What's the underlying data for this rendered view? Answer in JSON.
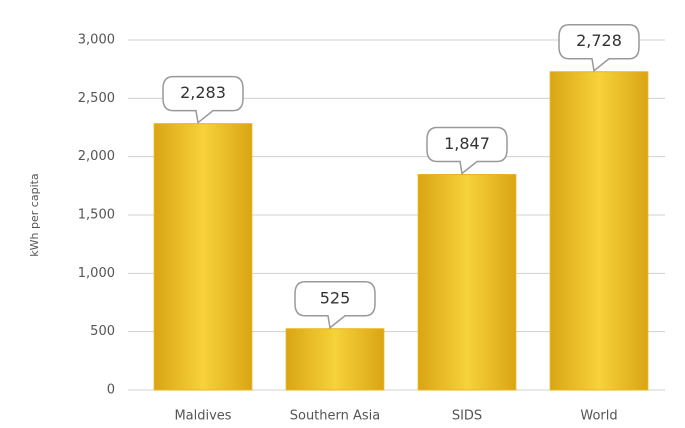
{
  "chart_data": {
    "type": "bar",
    "y_label": "kWh per capita",
    "categories": [
      "Maldives",
      "Southern Asia",
      "SIDS",
      "World"
    ],
    "values": [
      2283,
      525,
      1847,
      2728
    ],
    "value_labels": [
      "2,283",
      "525",
      "1,847",
      "2,728"
    ],
    "color": "#e8b41c",
    "ylim": [
      0,
      3000
    ],
    "yticks": [
      0,
      500,
      {
        "value": 1000,
        "label": "1,000"
      },
      {
        "value": 1500,
        "label": "1,500"
      },
      {
        "value": 2000,
        "label": "2,000"
      },
      {
        "value": 2500,
        "label": "2,500"
      },
      {
        "value": 3000,
        "label": "3,000"
      }
    ],
    "grid": true
  }
}
